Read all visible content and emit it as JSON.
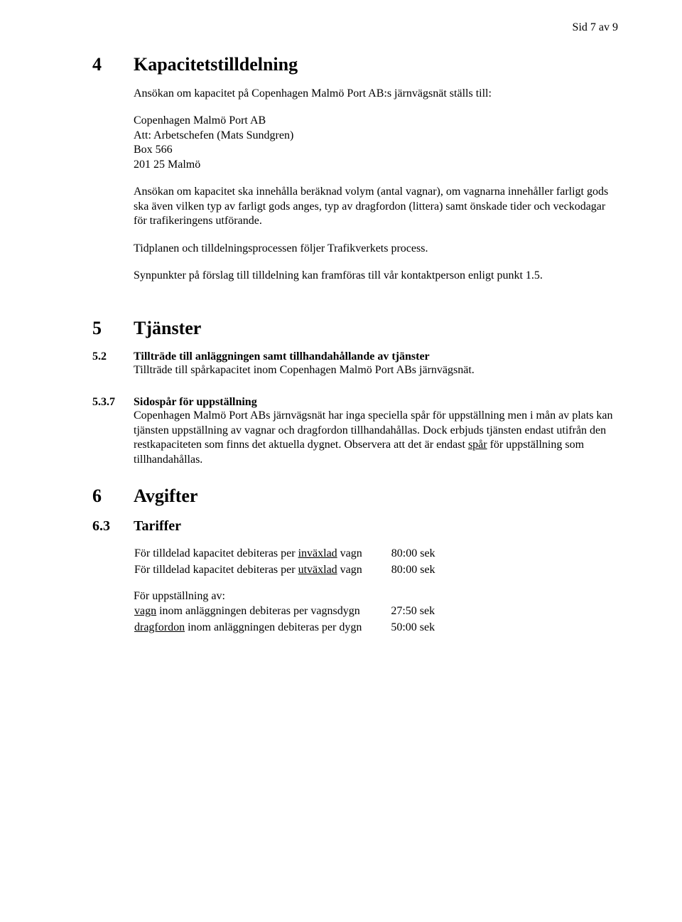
{
  "page_header": "Sid 7 av 9",
  "s4": {
    "num": "4",
    "title": "Kapacitetstilldelning",
    "p1": "Ansökan om kapacitet på Copenhagen Malmö Port AB:s järnvägsnät ställs till:",
    "addr1": "Copenhagen Malmö Port AB",
    "addr2": "Att: Arbetschefen (Mats Sundgren)",
    "addr3": "Box 566",
    "addr4": "201 25 Malmö",
    "p2": "Ansökan om kapacitet ska innehålla beräknad volym (antal vagnar), om vagnarna innehåller farligt gods ska även vilken typ av farligt gods anges, typ av dragfordon (littera) samt önskade tider och veckodagar för trafikeringens utförande.",
    "p3": "Tidplanen och tilldelningsprocessen följer Trafikverkets process.",
    "p4": "Synpunkter på förslag till tilldelning kan framföras till vår kontaktperson enligt punkt 1.5."
  },
  "s5": {
    "num": "5",
    "title": "Tjänster",
    "s52": {
      "num": "5.2",
      "title": "Tillträde till anläggningen samt tillhandahållande av tjänster",
      "p1": "Tillträde till spårkapacitet inom Copenhagen Malmö Port ABs järnvägsnät."
    },
    "s537": {
      "num": "5.3.7",
      "title": "Sidospår för uppställning",
      "p1a": "Copenhagen Malmö Port ABs järnvägsnät har inga speciella spår för uppställning men i mån av plats kan tjänsten uppställning av vagnar och dragfordon tillhandahållas. Dock erbjuds tjänsten endast utifrån den restkapaciteten som finns det aktuella dygnet. Observera att det är endast ",
      "p1_u": "spår",
      "p1b": " för uppställning som tillhandahållas."
    }
  },
  "s6": {
    "num": "6",
    "title": "Avgifter",
    "s63": {
      "num": "6.3",
      "title": "Tariffer",
      "r1a": "För tilldelad kapacitet debiteras per ",
      "r1u": "inväxlad",
      "r1b": " vagn",
      "r1amt": "80:00 sek",
      "r2a": "För tilldelad kapacitet debiteras per ",
      "r2u": "utväxlad",
      "r2b": " vagn",
      "r2amt": "80:00 sek",
      "r3": "För uppställning av:",
      "r4u": "vagn",
      "r4b": " inom anläggningen debiteras per vagnsdygn",
      "r4amt": "27:50 sek",
      "r5u": "dragfordon",
      "r5b": " inom anläggningen debiteras per dygn",
      "r5amt": "50:00 sek"
    }
  }
}
